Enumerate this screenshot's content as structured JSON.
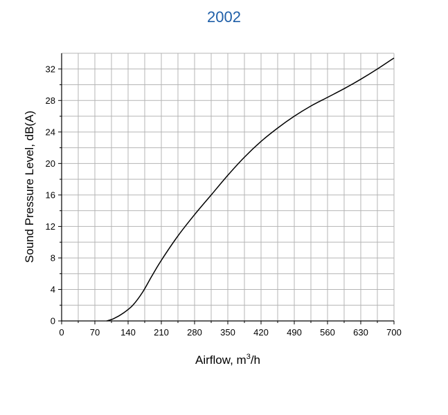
{
  "chart_data": {
    "type": "line",
    "title": "2002",
    "xlabel": "Airflow, m",
    "xlabel_sup": "3",
    "xlabel_suffix": "/h",
    "ylabel": "Sound Pressure Level, dB(A)",
    "xlim": [
      0,
      700
    ],
    "ylim": [
      0,
      34
    ],
    "x_ticks": [
      0,
      70,
      140,
      210,
      280,
      350,
      420,
      490,
      560,
      630,
      700
    ],
    "y_ticks": [
      0,
      4,
      8,
      12,
      16,
      20,
      24,
      28,
      32
    ],
    "grid": true,
    "grid_step_x": 35,
    "grid_step_y": 2,
    "series": [
      {
        "x": [
          95,
          110,
          130,
          150,
          170,
          190,
          210,
          245,
          280,
          315,
          350,
          385,
          420,
          455,
          490,
          525,
          560,
          595,
          630,
          665,
          700
        ],
        "y": [
          0,
          0.3,
          1.0,
          2.0,
          3.6,
          5.7,
          7.7,
          10.8,
          13.5,
          16.0,
          18.5,
          20.8,
          22.8,
          24.5,
          26.0,
          27.3,
          28.4,
          29.5,
          30.7,
          32.0,
          33.4
        ],
        "color": "#000000"
      }
    ]
  }
}
